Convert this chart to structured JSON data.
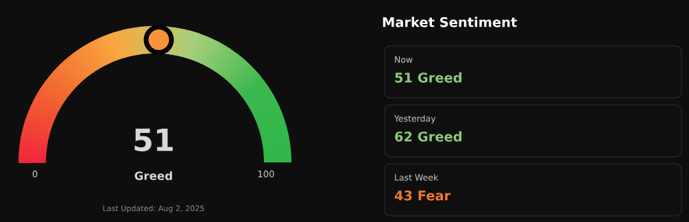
{
  "chart_data": [
    {
      "type": "other",
      "categories": [
        "Greed"
      ],
      "values": [
        51
      ],
      "value_labels": [
        "51"
      ],
      "color": "#f7943a",
      "annotations": [
        "0",
        "100",
        "Last Updated: Aug 2, 2025"
      ]
    },
    {
      "type": "other",
      "title": "Market Sentiment",
      "categories": [
        "Now",
        "Yesterday",
        "Last Week"
      ],
      "value_labels": [
        "51 Greed",
        "62 Greed",
        "43 Fear"
      ],
      "colors": [
        "#8dc97a",
        "#8dc97a",
        "#f07a30"
      ]
    }
  ]
}
